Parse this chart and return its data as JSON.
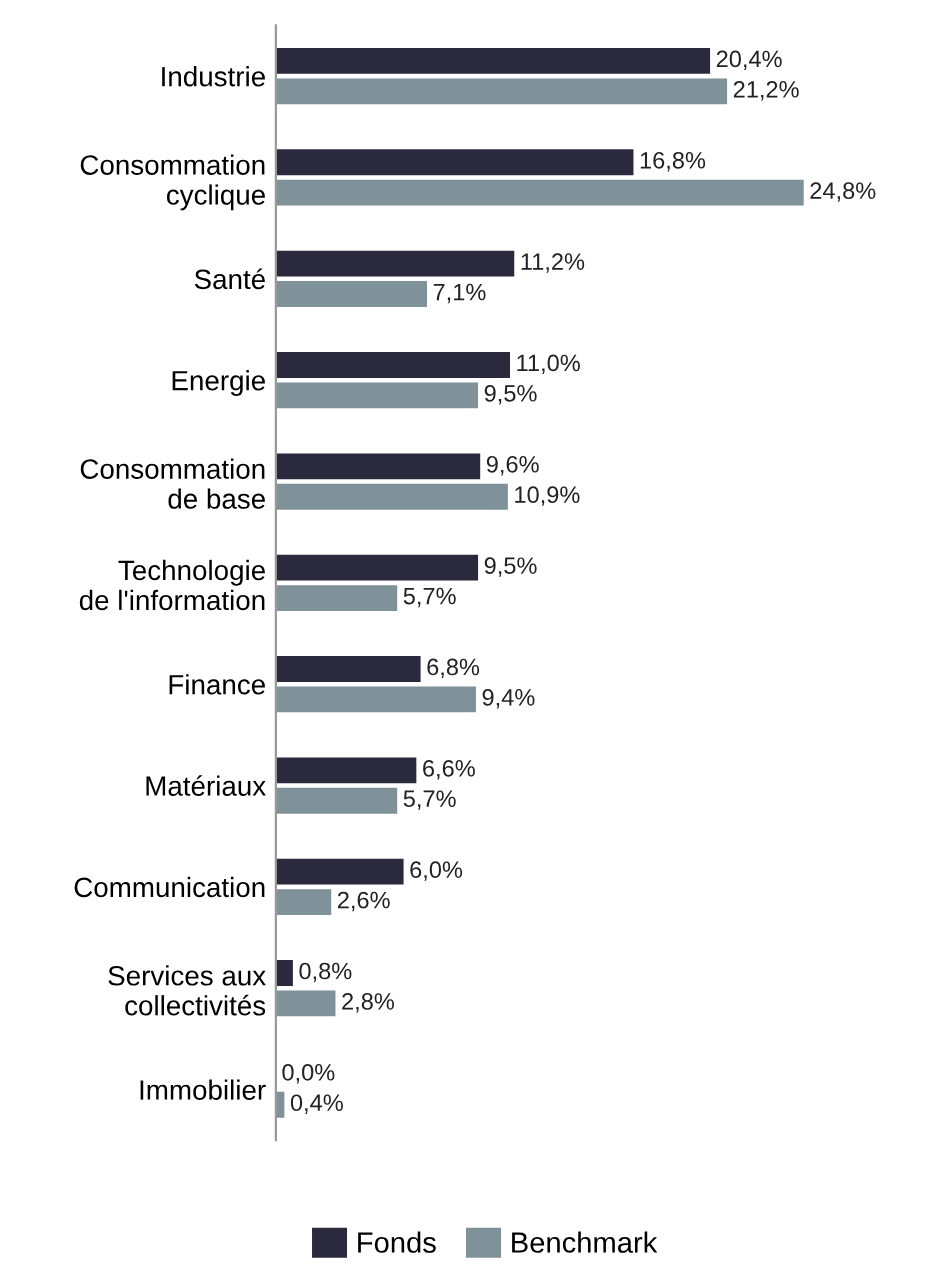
{
  "chart_data": {
    "type": "bar",
    "orientation": "horizontal",
    "categories": [
      "Industrie",
      "Consommation\ncyclique",
      "Santé",
      "Energie",
      "Consommation\nde base",
      "Technologie\nde l'information",
      "Finance",
      "Matériaux",
      "Communication",
      "Services aux\ncollectivités",
      "Immobilier"
    ],
    "series": [
      {
        "name": "Fonds",
        "color": "#2b2a3d",
        "values": [
          20.4,
          16.8,
          11.2,
          11.0,
          9.6,
          9.5,
          6.8,
          6.6,
          6.0,
          0.8,
          0.0
        ],
        "value_labels": [
          "20,4%",
          "16,8%",
          "11,2%",
          "11,0%",
          "9,6%",
          "9,5%",
          "6,8%",
          "6,6%",
          "6,0%",
          "0,8%",
          "0,0%"
        ]
      },
      {
        "name": "Benchmark",
        "color": "#7f9299",
        "values": [
          21.2,
          24.8,
          7.1,
          9.5,
          10.9,
          5.7,
          9.4,
          5.7,
          2.6,
          2.8,
          0.4
        ],
        "value_labels": [
          "21,2%",
          "24,8%",
          "7,1%",
          "9,5%",
          "10,9%",
          "5,7%",
          "9,4%",
          "5,7%",
          "2,6%",
          "2,8%",
          "0,4%"
        ]
      }
    ],
    "grid": false,
    "legend": "bottom"
  }
}
